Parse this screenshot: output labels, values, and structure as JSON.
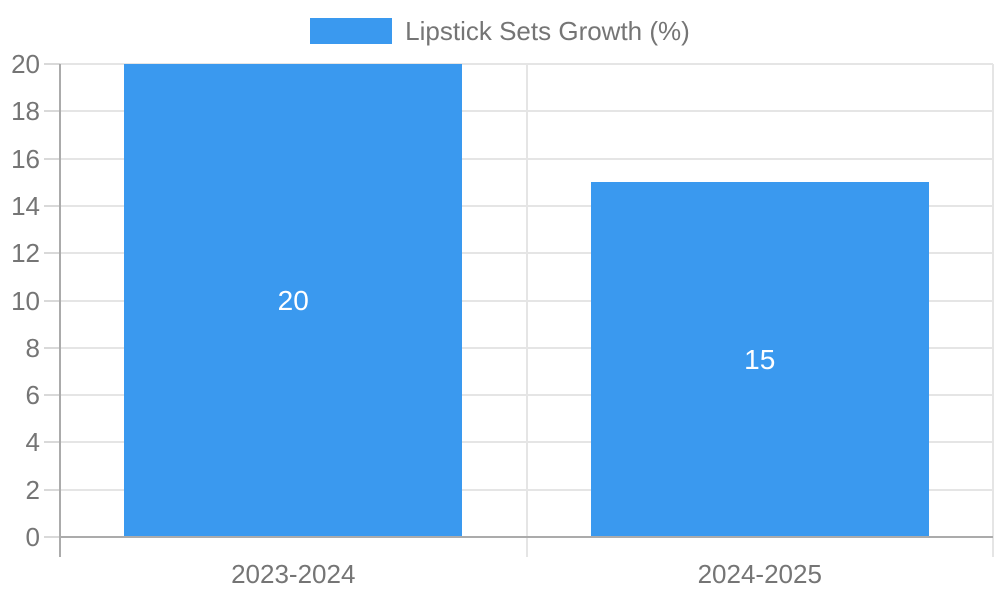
{
  "chart_data": {
    "type": "bar",
    "title": "Lipstick Sets Growth (%)",
    "categories": [
      "2023-2024",
      "2024-2025"
    ],
    "series": [
      {
        "name": "Lipstick Sets Growth (%)",
        "values": [
          20,
          15
        ]
      }
    ],
    "value_labels": [
      "20",
      "15"
    ],
    "xlabel": "",
    "ylabel": "",
    "ylim": [
      0,
      20
    ],
    "yticks": [
      0,
      2,
      4,
      6,
      8,
      10,
      12,
      14,
      16,
      18,
      20
    ],
    "grid": true,
    "legend_position": "top-center"
  },
  "colors": {
    "bar": "#3a99ef",
    "value_label_text": "#ffffff",
    "axis_text": "#757575",
    "axis_line": "#ababab",
    "gridline": "#e5e5e5",
    "tick_mark": "#d9d9d9",
    "background": "#ffffff"
  }
}
